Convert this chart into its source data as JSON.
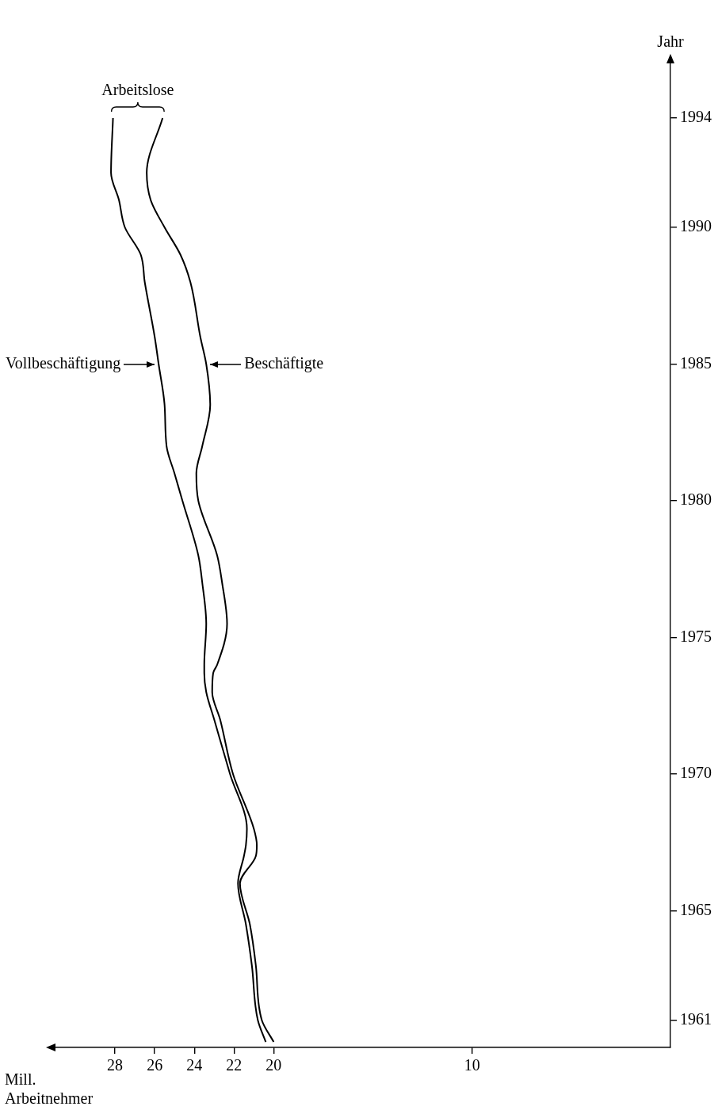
{
  "chart_data": {
    "type": "line",
    "orientation": "horizontal",
    "xlabel": "Mill.\nArbeitnehmer",
    "ylabel": "Jahr",
    "x": [
      1960.2,
      1961,
      1963,
      1964.5,
      1966,
      1967,
      1967.4,
      1968,
      1970,
      1972,
      1973,
      1973.7,
      1974,
      1975.5,
      1977,
      1978,
      1980,
      1981,
      1982,
      1983.5,
      1985,
      1986,
      1988,
      1989,
      1990,
      1991,
      1992,
      1994
    ],
    "xlim": [
      31,
      0
    ],
    "xticks": [
      28,
      26,
      24,
      22,
      20,
      10
    ],
    "ylim": [
      1960,
      1996
    ],
    "yticks": [
      1961,
      1965,
      1970,
      1975,
      1980,
      1985,
      1990,
      1994
    ],
    "series": [
      {
        "name": "Vollbeschäftigung",
        "color": "#000000",
        "values": [
          20.4,
          20.8,
          21.1,
          21.4,
          21.8,
          21.5,
          21.4,
          21.35,
          22.2,
          23.0,
          23.4,
          23.5,
          23.5,
          23.4,
          23.6,
          23.8,
          24.6,
          25.0,
          25.4,
          25.5,
          25.8,
          26.0,
          26.5,
          26.7,
          27.5,
          27.8,
          28.2,
          28.1
        ]
      },
      {
        "name": "Beschäftigte",
        "color": "#000000",
        "values": [
          20.0,
          20.6,
          20.9,
          21.2,
          21.7,
          20.9,
          20.85,
          21.0,
          22.05,
          22.7,
          23.1,
          23.05,
          22.85,
          22.35,
          22.6,
          22.85,
          23.8,
          23.9,
          23.6,
          23.2,
          23.4,
          23.7,
          24.2,
          24.7,
          25.5,
          26.2,
          26.4,
          25.6
        ]
      }
    ],
    "annotations": [
      "Arbeitslose"
    ],
    "grid": false,
    "marker": "none",
    "line_style": "solid"
  }
}
